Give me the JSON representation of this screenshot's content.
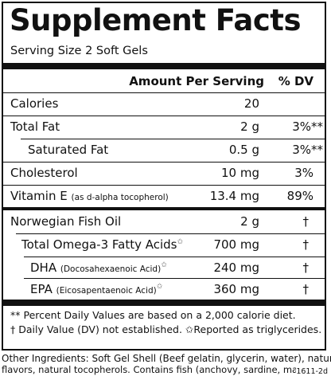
{
  "title": "Supplement Facts",
  "serving_size": "Serving Size 2 Soft Gels",
  "header": {
    "amount": "Amount Per Serving",
    "dv": "% DV"
  },
  "rows": [
    {
      "name": "Calories",
      "amount": "20",
      "dv": ""
    },
    {
      "name": "Total Fat",
      "amount": "2 g",
      "dv": "3%**"
    },
    {
      "name": "Saturated Fat",
      "amount": "0.5 g",
      "dv": "3%**"
    },
    {
      "name": "Cholesterol",
      "amount": "10 mg",
      "dv": "3%"
    },
    {
      "name": "Vitamin E",
      "note": "(as d-alpha tocopherol)",
      "amount": "13.4 mg",
      "dv": "89%"
    },
    {
      "name": "Norwegian Fish Oil",
      "amount": "2 g",
      "dv": "†"
    },
    {
      "name": "Total Omega-3 Fatty Acids",
      "star": "✩",
      "amount": "700 mg",
      "dv": "†"
    },
    {
      "name": "DHA",
      "note": "(Docosahexaenoic Acid)",
      "star": "✩",
      "amount": "240 mg",
      "dv": "†"
    },
    {
      "name": "EPA",
      "note": "(Eicosapentaenoic Acid)",
      "star": "✩",
      "amount": "360 mg",
      "dv": "†"
    }
  ],
  "footnotes": {
    "line1": "** Percent Daily Values are based on a 2,000 calorie diet.",
    "line2": "† Daily Value (DV) not established.  ✩Reported as triglycerides."
  },
  "ingredients": {
    "line1": "Other Ingredients: Soft Gel Shell (Beef gelatin, glycerin, water), natural",
    "line2": "flavors, natural tocopherols. Contains fish (anchovy, sardine, mackerel)."
  },
  "code": "1611-2d"
}
